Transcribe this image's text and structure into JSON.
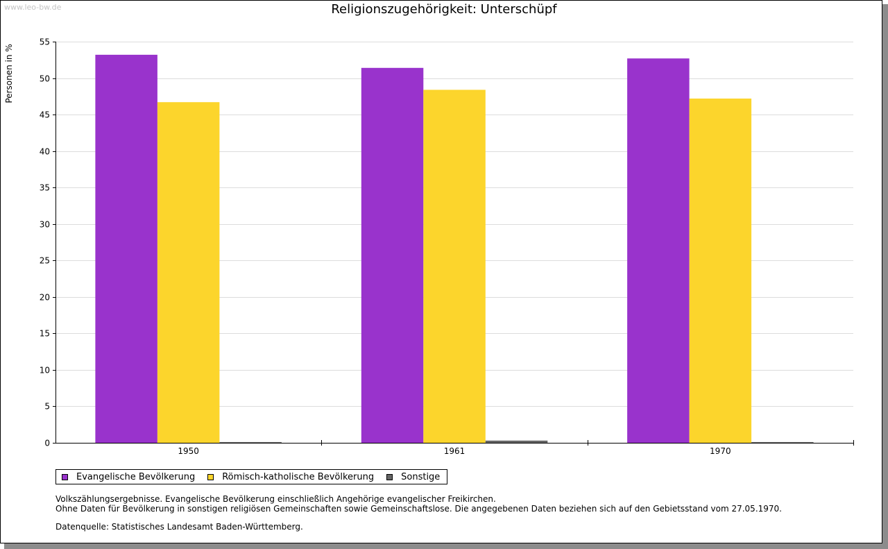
{
  "watermark": "www.leo-bw.de",
  "notes": {
    "line1": "Volkszählungsergebnisse. Evangelische Bevölkerung einschließlich Angehörige evangelischer Freikirchen.",
    "line2": "Ohne Daten für Bevölkerung in sonstigen religiösen Gemeinschaften sowie Gemeinschaftslose. Die angegebenen Daten beziehen sich auf den Gebietsstand vom 27.05.1970.",
    "source": "Datenquelle: Statistisches Landesamt Baden-Württemberg."
  },
  "chart_data": {
    "type": "bar",
    "title": "Religionszugehörigkeit: Unterschüpf",
    "xlabel": "",
    "ylabel": "Personen in %",
    "categories": [
      "1950",
      "1961",
      "1970"
    ],
    "ylim": [
      0,
      55
    ],
    "yticks": [
      0,
      5,
      10,
      15,
      20,
      25,
      30,
      35,
      40,
      45,
      50,
      55
    ],
    "grid": true,
    "legend_position": "bottom-left",
    "series": [
      {
        "name": "Evangelische Bevölkerung",
        "color": "#9933cc",
        "values": [
          53.2,
          51.4,
          52.7
        ]
      },
      {
        "name": "Römisch-katholische Bevölkerung",
        "color": "#fcd52c",
        "values": [
          46.7,
          48.4,
          47.2
        ]
      },
      {
        "name": "Sonstige",
        "color": "#666666",
        "values": [
          0.1,
          0.3,
          0.1
        ]
      }
    ]
  }
}
